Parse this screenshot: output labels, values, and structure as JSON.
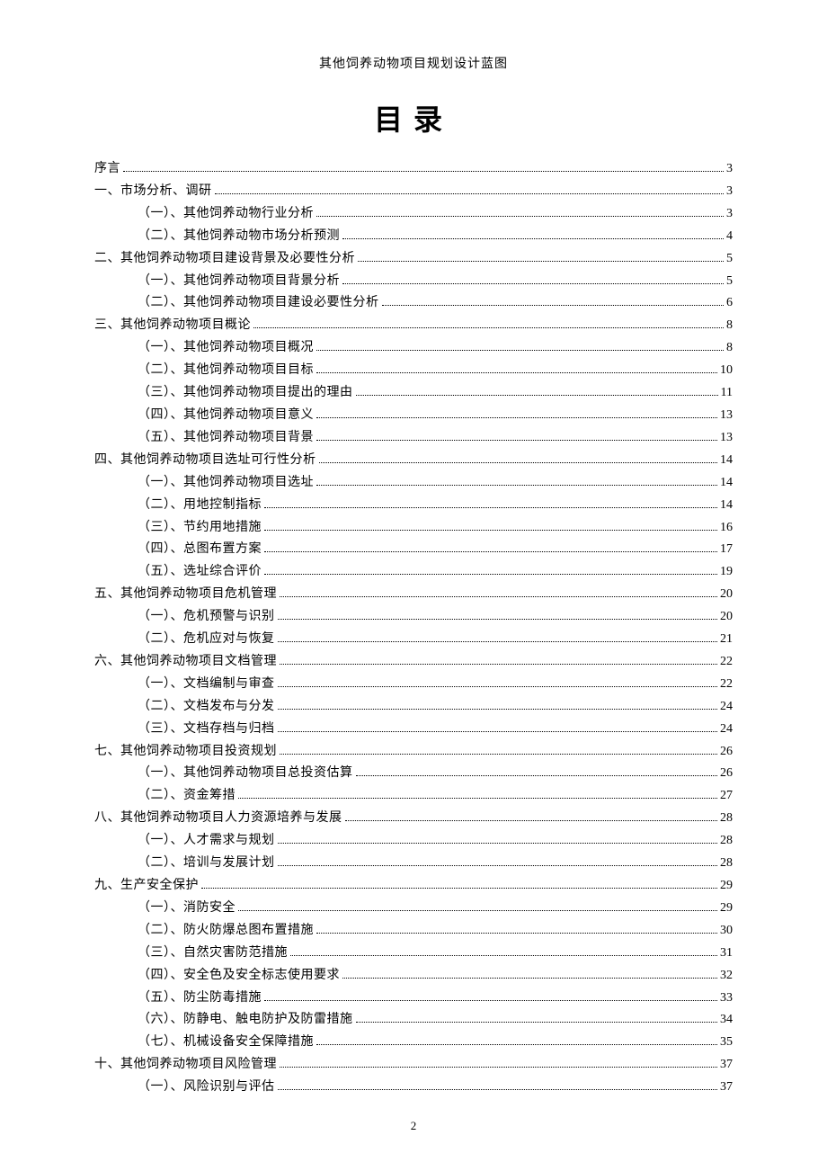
{
  "header": "其他饲养动物项目规划设计蓝图",
  "title": "目录",
  "page_number": "2",
  "toc": [
    {
      "level": 0,
      "label": "序言",
      "page": "3"
    },
    {
      "level": 0,
      "label": "一、市场分析、调研",
      "page": "3"
    },
    {
      "level": 1,
      "label": "（一）、其他饲养动物行业分析",
      "page": "3"
    },
    {
      "level": 1,
      "label": "（二）、其他饲养动物市场分析预测",
      "page": "4"
    },
    {
      "level": 0,
      "label": "二、其他饲养动物项目建设背景及必要性分析",
      "page": "5"
    },
    {
      "level": 1,
      "label": "（一）、其他饲养动物项目背景分析",
      "page": "5"
    },
    {
      "level": 1,
      "label": "（二）、其他饲养动物项目建设必要性分析",
      "page": "6"
    },
    {
      "level": 0,
      "label": "三、其他饲养动物项目概论",
      "page": "8"
    },
    {
      "level": 1,
      "label": "（一）、其他饲养动物项目概况",
      "page": "8"
    },
    {
      "level": 1,
      "label": "（二）、其他饲养动物项目目标",
      "page": "10"
    },
    {
      "level": 1,
      "label": "（三）、其他饲养动物项目提出的理由",
      "page": "11"
    },
    {
      "level": 1,
      "label": "（四）、其他饲养动物项目意义",
      "page": "13"
    },
    {
      "level": 1,
      "label": "（五）、其他饲养动物项目背景",
      "page": "13"
    },
    {
      "level": 0,
      "label": "四、其他饲养动物项目选址可行性分析",
      "page": "14"
    },
    {
      "level": 1,
      "label": "（一）、其他饲养动物项目选址",
      "page": "14"
    },
    {
      "level": 1,
      "label": "（二）、用地控制指标",
      "page": "14"
    },
    {
      "level": 1,
      "label": "（三）、节约用地措施",
      "page": "16"
    },
    {
      "level": 1,
      "label": "（四）、总图布置方案",
      "page": "17"
    },
    {
      "level": 1,
      "label": "（五）、选址综合评价",
      "page": "19"
    },
    {
      "level": 0,
      "label": "五、其他饲养动物项目危机管理",
      "page": "20"
    },
    {
      "level": 1,
      "label": "（一）、危机预警与识别",
      "page": "20"
    },
    {
      "level": 1,
      "label": "（二）、危机应对与恢复",
      "page": "21"
    },
    {
      "level": 0,
      "label": "六、其他饲养动物项目文档管理",
      "page": "22"
    },
    {
      "level": 1,
      "label": "（一）、文档编制与审查",
      "page": "22"
    },
    {
      "level": 1,
      "label": "（二）、文档发布与分发",
      "page": "24"
    },
    {
      "level": 1,
      "label": "（三）、文档存档与归档",
      "page": "24"
    },
    {
      "level": 0,
      "label": "七、其他饲养动物项目投资规划",
      "page": "26"
    },
    {
      "level": 1,
      "label": "（一）、其他饲养动物项目总投资估算",
      "page": "26"
    },
    {
      "level": 1,
      "label": "（二）、资金筹措 ",
      "page": "27"
    },
    {
      "level": 0,
      "label": "八、其他饲养动物项目人力资源培养与发展",
      "page": "28"
    },
    {
      "level": 1,
      "label": "（一）、人才需求与规划",
      "page": "28"
    },
    {
      "level": 1,
      "label": "（二）、培训与发展计划",
      "page": "28"
    },
    {
      "level": 0,
      "label": "九、生产安全保护 ",
      "page": "29"
    },
    {
      "level": 1,
      "label": "（一）、消防安全 ",
      "page": "29"
    },
    {
      "level": 1,
      "label": "（二）、防火防爆总图布置措施",
      "page": "30"
    },
    {
      "level": 1,
      "label": "（三）、自然灾害防范措施",
      "page": "31"
    },
    {
      "level": 1,
      "label": "（四）、安全色及安全标志使用要求",
      "page": "32"
    },
    {
      "level": 1,
      "label": "（五）、防尘防毒措施",
      "page": "33"
    },
    {
      "level": 1,
      "label": "（六）、防静电、触电防护及防雷措施",
      "page": "34"
    },
    {
      "level": 1,
      "label": "（七）、机械设备安全保障措施",
      "page": "35"
    },
    {
      "level": 0,
      "label": "十、其他饲养动物项目风险管理",
      "page": "37"
    },
    {
      "level": 1,
      "label": "（一）、风险识别与评估",
      "page": "37"
    }
  ]
}
